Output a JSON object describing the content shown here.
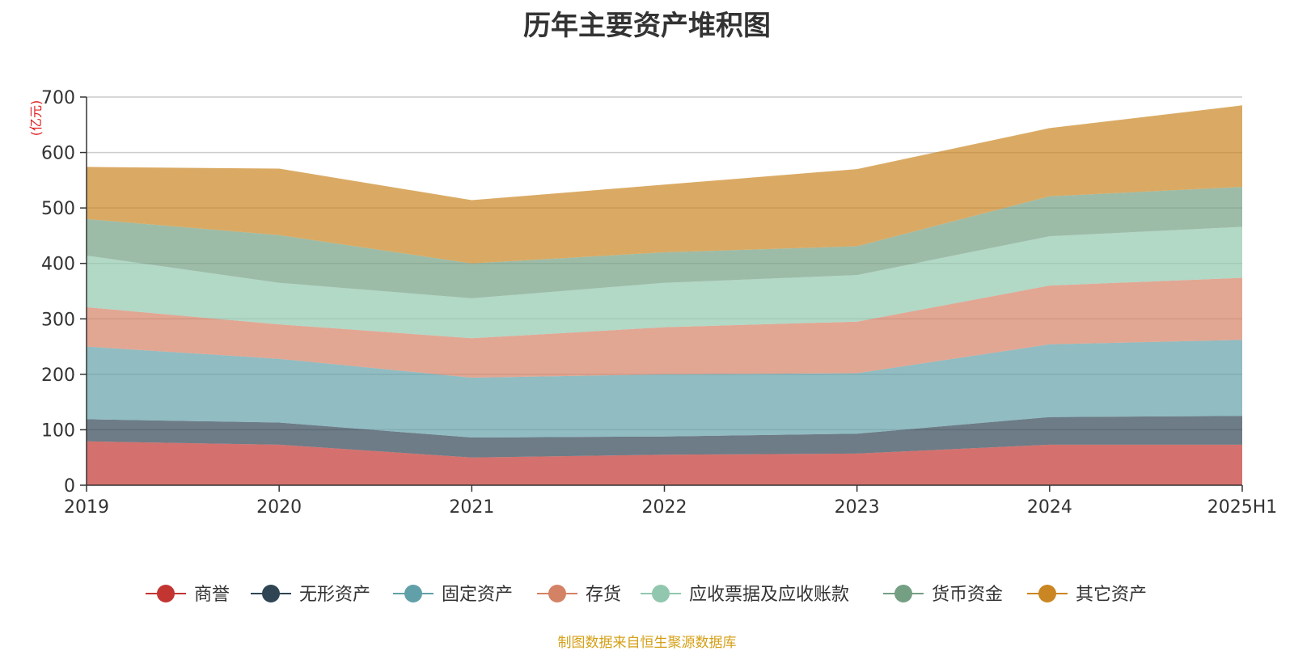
{
  "chart_data": {
    "type": "area",
    "title": "历年主要资产堆积图",
    "ylabel": "(亿元)",
    "xlabel": "",
    "x": [
      "2019",
      "2020",
      "2021",
      "2022",
      "2023",
      "2024",
      "2025H1"
    ],
    "ylim": [
      0,
      700
    ],
    "yticks": [
      0,
      100,
      200,
      300,
      400,
      500,
      600,
      700
    ],
    "stacked": true,
    "grid": true,
    "legend_position": "bottom",
    "series": [
      {
        "name": "商誉",
        "color": "#c23531",
        "values": [
          79,
          73,
          50,
          55,
          57,
          73,
          73
        ]
      },
      {
        "name": "无形资产",
        "color": "#2f4554",
        "values": [
          40,
          40,
          36,
          33,
          36,
          50,
          52
        ]
      },
      {
        "name": "固定资产",
        "color": "#61a0a8",
        "values": [
          131,
          115,
          108,
          112,
          109,
          131,
          137
        ]
      },
      {
        "name": "存货",
        "color": "#d48265",
        "values": [
          71,
          62,
          71,
          85,
          93,
          106,
          112
        ]
      },
      {
        "name": "应收票据及应收账款",
        "color": "#91c7ae",
        "values": [
          93,
          75,
          72,
          80,
          84,
          89,
          92
        ]
      },
      {
        "name": "货币资金",
        "color": "#749f83",
        "values": [
          66,
          86,
          63,
          55,
          52,
          72,
          72
        ]
      },
      {
        "name": "其它资产",
        "color": "#ca8622",
        "values": [
          94,
          120,
          114,
          122,
          139,
          123,
          147
        ]
      }
    ]
  },
  "source_note": "制图数据来自恒生聚源数据库"
}
